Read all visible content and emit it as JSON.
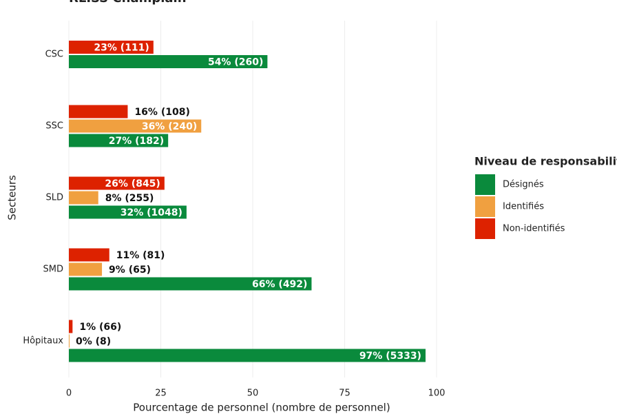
{
  "chart_data": {
    "type": "hbar",
    "title": "RLISS Champlain",
    "categories": [
      "CSC",
      "SSC",
      "SLD",
      "SMD",
      "Hôpitaux"
    ],
    "xlabel": "Pourcentage de personnel (nombre de personnel)",
    "ylabel": "Secteurs",
    "legend_title": "Niveau de responsabilité",
    "legend": "right",
    "xlim": [
      0,
      100
    ],
    "xticks": [
      0,
      25,
      50,
      75,
      100
    ],
    "grid": true,
    "series": [
      {
        "name": "Désignés",
        "color": "#0a8a3c",
        "values": [
          54,
          27,
          32,
          66,
          97
        ],
        "value_labels": [
          "54% (260)",
          "27% (182)",
          "32% (1048)",
          "66% (492)",
          "97% (5333)"
        ]
      },
      {
        "name": "Identifiés",
        "color": "#f0a040",
        "values": [
          null,
          36,
          8,
          9,
          0
        ],
        "value_labels": [
          null,
          "36% (240)",
          "8% (255)",
          "9% (65)",
          "0% (8)"
        ]
      },
      {
        "name": "Non-identifiés",
        "color": "#dd2200",
        "values": [
          23,
          16,
          26,
          11,
          1
        ],
        "value_labels": [
          "23% (111)",
          "16% (108)",
          "26% (845)",
          "11% (81)",
          "1% (66)"
        ]
      }
    ]
  }
}
